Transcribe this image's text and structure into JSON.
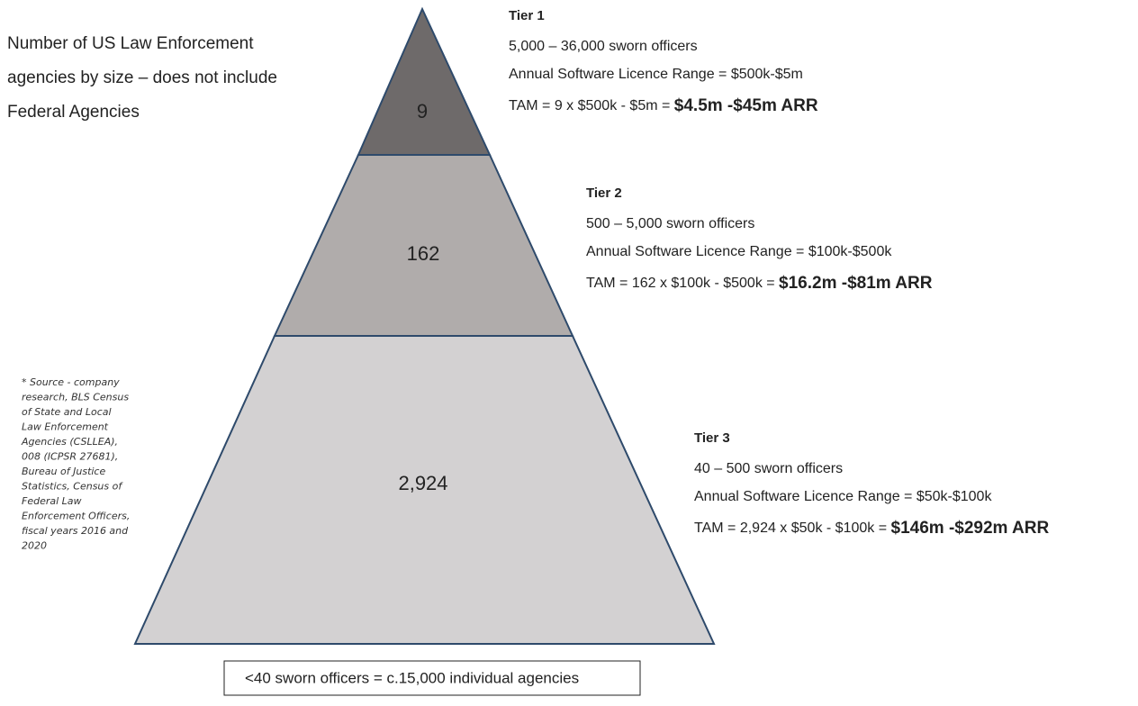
{
  "title_lines": [
    "Number of US Law Enforcement",
    "agencies by size – does not include",
    "Federal Agencies"
  ],
  "source_lines": [
    "* Source - company",
    "research, BLS Census",
    "of State and Local",
    "Law Enforcement",
    "Agencies (CSLLEA),",
    "008 (ICPSR 27681),",
    "Bureau of Justice",
    "Statistics, Census of",
    "Federal Law",
    "Enforcement Officers,",
    "fiscal years 2016 and",
    "2020"
  ],
  "tiers": [
    {
      "name": "Tier 1",
      "count": "9",
      "officers": "5,000 – 36,000 sworn officers",
      "licence": "Annual Software Licence Range = $500k-$5m",
      "tam": "TAM = 9 x $500k - $5m = ",
      "tam_result": "$4.5m -$45m ARR"
    },
    {
      "name": "Tier 2",
      "count": "162",
      "officers": "500 – 5,000 sworn officers",
      "licence": "Annual Software Licence Range = $100k-$500k",
      "tam": "TAM = 162 x $100k - $500k = ",
      "tam_result": "$16.2m -$81m ARR"
    },
    {
      "name": "Tier 3",
      "count": "2,924",
      "officers": "40 – 500 sworn officers",
      "licence": "Annual Software Licence Range = $50k-$100k",
      "tam": "TAM = 2,924 x $50k - $100k = ",
      "tam_result": "$146m -$292m ARR"
    }
  ],
  "footer_box": "<40 sworn officers = c.15,000 individual agencies"
}
